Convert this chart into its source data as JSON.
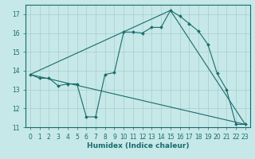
{
  "xlabel": "Humidex (Indice chaleur)",
  "ylabel": "",
  "bg_color": "#c6e8e8",
  "grid_color": "#a8cccc",
  "line_color": "#1a6b6b",
  "xlim": [
    -0.5,
    23.5
  ],
  "ylim": [
    11,
    17.5
  ],
  "yticks": [
    11,
    12,
    13,
    14,
    15,
    16,
    17
  ],
  "xticks": [
    0,
    1,
    2,
    3,
    4,
    5,
    6,
    7,
    8,
    9,
    10,
    11,
    12,
    13,
    14,
    15,
    16,
    17,
    18,
    19,
    20,
    21,
    22,
    23
  ],
  "line1_x": [
    0,
    1,
    2,
    3,
    4,
    5,
    6,
    7,
    8,
    9,
    10,
    11,
    12,
    13,
    14,
    15,
    16,
    17,
    18,
    19,
    20,
    21,
    22,
    23
  ],
  "line1_y": [
    13.8,
    13.6,
    13.6,
    13.2,
    13.3,
    13.3,
    11.55,
    11.55,
    13.8,
    13.9,
    16.05,
    16.05,
    16.0,
    16.3,
    16.3,
    17.2,
    16.9,
    16.5,
    16.1,
    15.4,
    13.85,
    13.0,
    11.15,
    11.15
  ],
  "line2_x": [
    0,
    23
  ],
  "line2_y": [
    13.8,
    11.15
  ],
  "line3_x": [
    0,
    15,
    23
  ],
  "line3_y": [
    13.8,
    17.2,
    11.15
  ],
  "tick_fontsize": 5.5,
  "xlabel_fontsize": 6.5
}
